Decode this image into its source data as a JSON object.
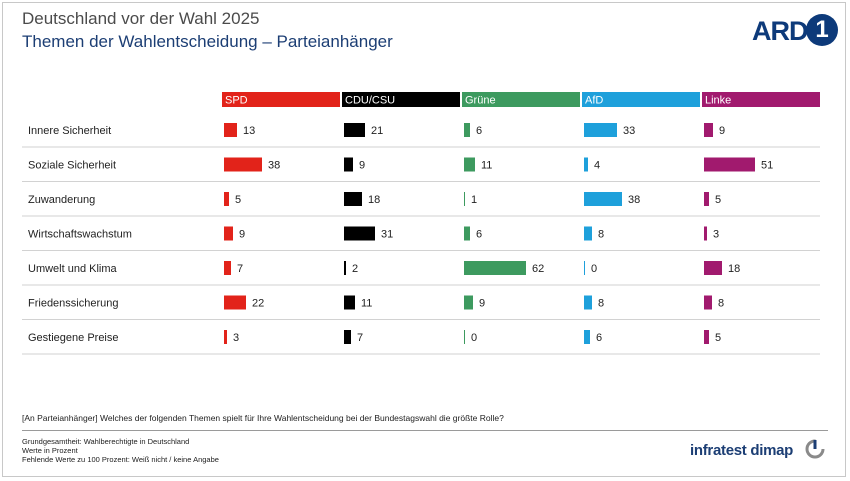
{
  "header": {
    "title": "Deutschland vor der Wahl 2025",
    "subtitle": "Themen der Wahlentscheidung – Parteianhänger",
    "logo_text": "ARD",
    "logo_number": "1"
  },
  "chart_data": {
    "type": "bar",
    "orientation": "horizontal",
    "panels": "small-multiples per party",
    "categories": [
      "Innere Sicherheit",
      "Soziale Sicherheit",
      "Zuwanderung",
      "Wirtschaftswachstum",
      "Umwelt und Klima",
      "Friedenssicherung",
      "Gestiegene Preise"
    ],
    "series": [
      {
        "name": "SPD",
        "color": "#e2231a",
        "values": [
          13,
          38,
          5,
          9,
          7,
          22,
          3
        ]
      },
      {
        "name": "CDU/CSU",
        "color": "#000000",
        "values": [
          21,
          9,
          18,
          31,
          2,
          11,
          7
        ]
      },
      {
        "name": "Grüne",
        "color": "#3d9a5f",
        "values": [
          6,
          11,
          1,
          6,
          62,
          9,
          0
        ]
      },
      {
        "name": "AfD",
        "color": "#1ea0db",
        "values": [
          33,
          4,
          38,
          8,
          0,
          8,
          6
        ]
      },
      {
        "name": "Linke",
        "color": "#a11a6e",
        "values": [
          9,
          51,
          5,
          3,
          18,
          8,
          5
        ]
      }
    ],
    "xlim": [
      0,
      100
    ],
    "grid": false,
    "legend": "top (party header bars)"
  },
  "footer": {
    "question": "[An Parteianhänger] Welches der folgenden Themen spielt für Ihre Wahlentscheidung bei der Bundestagswahl die größte Rolle?",
    "notes": [
      "Grundgesamtheit: Wahlberechtigte in Deutschland",
      "Werte in Prozent",
      "Fehlende Werte zu 100 Prozent: Weiß nicht / keine Angabe"
    ],
    "brand": "infratest dimap"
  }
}
